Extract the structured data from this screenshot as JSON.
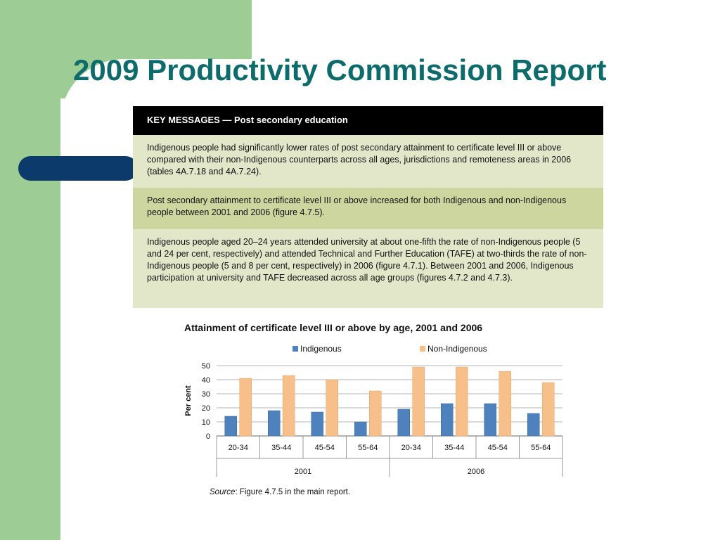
{
  "slide": {
    "title": "2009 Productivity Commission Report"
  },
  "key_messages": {
    "header": "KEY MESSAGES — Post secondary education",
    "items": [
      "Indigenous people had significantly lower rates of post secondary attainment to certificate level III or above compared with their non-Indigenous counterparts across all ages, jurisdictions and remoteness areas in 2006 (tables 4A.7.18 and 4A.7.24).",
      "Post secondary attainment to certificate level III or above increased for both Indigenous and non-Indigenous people between 2001 and 2006 (figure 4.7.5).",
      "Indigenous people aged 20–24 years attended university at about one-fifth the rate of non-Indigenous people (5 and 24 per cent, respectively) and attended Technical and Further Education (TAFE) at two-thirds the rate of non-Indigenous people (5 and 8 per cent, respectively) in 2006 (figure 4.7.1). Between 2001 and 2006, Indigenous participation at university and TAFE decreased across all age groups (figures 4.7.2 and 4.7.3)."
    ]
  },
  "chart_data": {
    "type": "bar",
    "title": "Attainment of certificate level III or above by age, 2001 and 2006",
    "ylabel": "Per cent",
    "ylim": [
      0,
      50
    ],
    "yticks": [
      0,
      10,
      20,
      30,
      40,
      50
    ],
    "grid": true,
    "legend_placement": "top",
    "groups": [
      {
        "label": "2001",
        "categories": [
          "20-34",
          "35-44",
          "45-54",
          "55-64"
        ]
      },
      {
        "label": "2006",
        "categories": [
          "20-34",
          "35-44",
          "45-54",
          "55-64"
        ]
      }
    ],
    "categories": [
      "20-34",
      "35-44",
      "45-54",
      "55-64",
      "20-34",
      "35-44",
      "45-54",
      "55-64"
    ],
    "series": [
      {
        "name": "Indigenous",
        "color": "#4f81bd",
        "values": [
          14,
          18,
          17,
          10,
          19,
          23,
          23,
          16
        ]
      },
      {
        "name": "Non-Indigenous",
        "color": "#f7bf8a",
        "values": [
          41,
          43,
          40,
          32,
          49,
          49,
          46,
          38
        ]
      }
    ]
  },
  "source": {
    "label": "Source",
    "text": ": Figure 4.7.5 in the main report."
  }
}
